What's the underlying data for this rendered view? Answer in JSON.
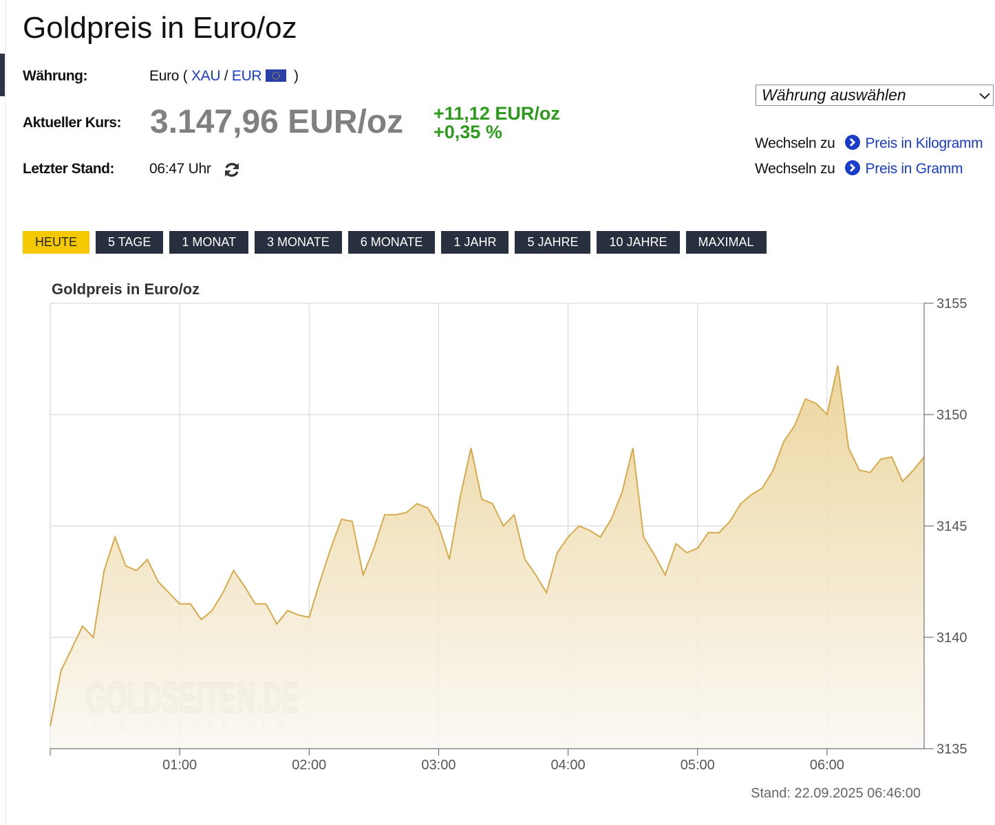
{
  "header": {
    "title": "Goldpreis in Euro/oz"
  },
  "info": {
    "currency_label": "Währung:",
    "currency_name": "Euro (",
    "code_metal": "XAU",
    "slash": "/",
    "code_currency": "EUR",
    "close": ")",
    "price_label": "Aktueller Kurs:",
    "price": "3.147,96 EUR/oz",
    "change_abs": "+11,12 EUR/oz",
    "change_pct": "+0,35 %",
    "time_label": "Letzter Stand:",
    "time": "06:47 Uhr"
  },
  "sidebar": {
    "select": "Währung auswählen",
    "links": [
      {
        "prefix": "Wechseln zu",
        "label": "Preis in Kilogramm"
      },
      {
        "prefix": "Wechseln zu",
        "label": "Preis in Gramm"
      }
    ]
  },
  "tabs": [
    "HEUTE",
    "5 TAGE",
    "1 MONAT",
    "3 MONATE",
    "6 MONATE",
    "1 JAHR",
    "5 JAHRE",
    "10 JAHRE",
    "MAXIMAL"
  ],
  "active_tab": 0,
  "chart_data": {
    "type": "area",
    "title": "Goldpreis in Euro/oz",
    "watermark": "GOLDSEITEN.DE",
    "watermark_sub": "DIE GOLDSEITEN",
    "footer": "Stand: 22.09.2025 06:46:00",
    "color": "#d6a94a",
    "x": [
      0,
      5,
      10,
      15,
      20,
      25,
      30,
      35,
      40,
      45,
      50,
      55,
      60,
      65,
      70,
      75,
      80,
      85,
      90,
      95,
      100,
      105,
      110,
      115,
      120,
      125,
      130,
      135,
      140,
      145,
      150,
      155,
      160,
      165,
      170,
      175,
      180,
      185,
      190,
      195,
      200,
      205,
      210,
      215,
      220,
      225,
      230,
      235,
      240,
      245,
      250,
      255,
      260,
      265,
      270,
      275,
      280,
      285,
      290,
      295,
      300,
      305,
      310,
      315,
      320,
      325,
      330,
      335,
      340,
      345,
      350,
      355,
      360,
      365,
      370,
      375,
      380,
      385,
      390,
      395,
      400,
      405
    ],
    "values": [
      3136.0,
      3138.5,
      3139.5,
      3140.5,
      3140.0,
      3143.0,
      3144.5,
      3143.2,
      3143.0,
      3143.5,
      3142.5,
      3142.0,
      3141.5,
      3141.5,
      3140.8,
      3141.2,
      3142.0,
      3143.0,
      3142.3,
      3141.5,
      3141.5,
      3140.6,
      3141.2,
      3141.0,
      3140.9,
      3142.5,
      3144.0,
      3145.3,
      3145.2,
      3142.8,
      3144.0,
      3145.5,
      3145.5,
      3145.6,
      3146.0,
      3145.8,
      3145.0,
      3143.5,
      3146.3,
      3148.5,
      3146.2,
      3146.0,
      3145.0,
      3145.5,
      3143.5,
      3142.8,
      3142.0,
      3143.8,
      3144.5,
      3145.0,
      3144.8,
      3144.5,
      3145.3,
      3146.5,
      3148.5,
      3144.5,
      3143.7,
      3142.8,
      3144.2,
      3143.8,
      3144.0,
      3144.7,
      3144.7,
      3145.2,
      3146.0,
      3146.4,
      3146.7,
      3147.5,
      3148.8,
      3149.5,
      3150.7,
      3150.5,
      3150.0,
      3152.2,
      3148.5,
      3147.5,
      3147.4,
      3148.0,
      3148.1,
      3147.0,
      3147.5,
      3148.1
    ],
    "xlim": [
      0,
      405
    ],
    "xticks": [
      {
        "value": 60,
        "label": "01:00"
      },
      {
        "value": 120,
        "label": "02:00"
      },
      {
        "value": 180,
        "label": "03:00"
      },
      {
        "value": 240,
        "label": "04:00"
      },
      {
        "value": 300,
        "label": "05:00"
      },
      {
        "value": 360,
        "label": "06:00"
      }
    ],
    "ylim": [
      3135,
      3155
    ],
    "yticks": [
      3135,
      3140,
      3145,
      3150,
      3155
    ],
    "grid": true
  }
}
